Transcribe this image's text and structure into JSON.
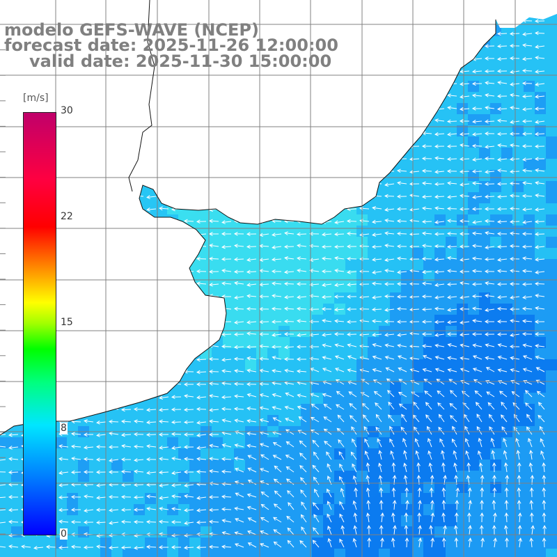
{
  "header": {
    "model": "modelo GEFS-WAVE (NCEP)",
    "forecast": "forecast date: 2025-11-26 12:00:00",
    "valid": "valid date: 2025-11-30 15:00:00"
  },
  "colorbar": {
    "unit": "[m/s]",
    "ticks": [
      "30",
      "22",
      "15",
      "8",
      "0"
    ],
    "min": 0,
    "max": 30,
    "colors": [
      "#0000ff",
      "#0080ff",
      "#00e6ff",
      "#00ff80",
      "#00ff00",
      "#ffff00",
      "#ff8000",
      "#ff0000",
      "#c0006a"
    ]
  },
  "map": {
    "land_color": "#ffffff",
    "ocean_colors": [
      "#0a78f0",
      "#1e9ef5",
      "#28c8f5",
      "#3ee6ee"
    ],
    "arrow_color": "#ffffff",
    "grid": true
  }
}
